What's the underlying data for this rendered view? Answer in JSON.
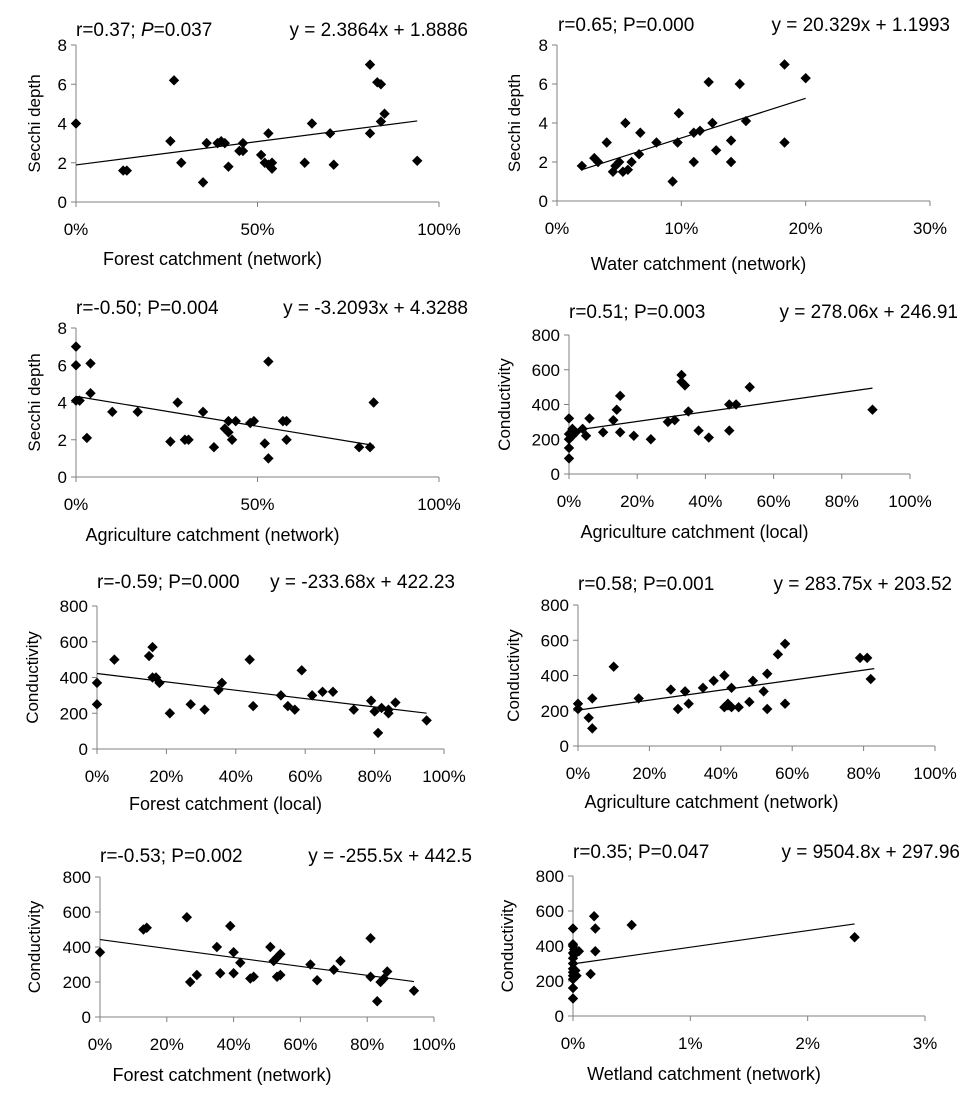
{
  "chart_data": [
    {
      "type": "scatter",
      "stat_r": "r=0.37; ",
      "stat_p_label": "P",
      "stat_p_value": "=0.037",
      "equation": "y = 2.3864x + 1.8886",
      "xlabel": "Forest catchment (network)",
      "ylabel": "Secchi depth",
      "xlim": [
        0,
        1
      ],
      "ylim": [
        0,
        8
      ],
      "xticks": [
        "0%",
        "50%",
        "100%"
      ],
      "xtick_values": [
        0,
        0.5,
        1
      ],
      "yticks": [
        "0",
        "2",
        "4",
        "6",
        "8"
      ],
      "ytick_values": [
        0,
        2,
        4,
        6,
        8
      ],
      "trend": {
        "slope": 2.3864,
        "intercept": 1.8886,
        "x_range": [
          0,
          0.94
        ]
      },
      "x": [
        0.0,
        0.13,
        0.14,
        0.26,
        0.27,
        0.29,
        0.35,
        0.36,
        0.39,
        0.4,
        0.41,
        0.42,
        0.45,
        0.46,
        0.46,
        0.51,
        0.52,
        0.53,
        0.53,
        0.54,
        0.54,
        0.63,
        0.65,
        0.7,
        0.71,
        0.81,
        0.81,
        0.83,
        0.84,
        0.84,
        0.85,
        0.94
      ],
      "y": [
        4.0,
        1.6,
        1.6,
        3.1,
        6.2,
        2.0,
        1.0,
        3.0,
        3.0,
        3.1,
        3.0,
        1.8,
        2.6,
        3.0,
        2.6,
        2.4,
        2.0,
        1.9,
        3.5,
        1.7,
        2.0,
        2.0,
        4.0,
        3.5,
        1.9,
        7.0,
        3.5,
        6.1,
        4.1,
        6.0,
        4.5,
        2.1
      ]
    },
    {
      "type": "scatter",
      "stat_r": "r=0.65; P=0.000",
      "equation": "y = 20.329x + 1.1993",
      "xlabel": "Water catchment (network)",
      "ylabel": "Secchi depth",
      "xlim": [
        0,
        0.3
      ],
      "ylim": [
        0,
        8
      ],
      "xticks": [
        "0%",
        "10%",
        "20%",
        "30%"
      ],
      "xtick_values": [
        0,
        0.1,
        0.2,
        0.3
      ],
      "yticks": [
        "0",
        "2",
        "4",
        "6",
        "8"
      ],
      "ytick_values": [
        0,
        2,
        4,
        6,
        8
      ],
      "trend": {
        "slope": 20.329,
        "intercept": 1.1993,
        "x_range": [
          0.02,
          0.2
        ]
      },
      "x": [
        0.02,
        0.03,
        0.033,
        0.04,
        0.045,
        0.047,
        0.05,
        0.053,
        0.055,
        0.057,
        0.06,
        0.066,
        0.067,
        0.08,
        0.093,
        0.097,
        0.098,
        0.11,
        0.11,
        0.115,
        0.122,
        0.125,
        0.128,
        0.14,
        0.14,
        0.147,
        0.152,
        0.183,
        0.183,
        0.2
      ],
      "y": [
        1.8,
        2.2,
        2.0,
        3.0,
        1.5,
        1.8,
        2.0,
        1.5,
        4.0,
        1.6,
        2.0,
        2.4,
        3.5,
        3.0,
        1.0,
        3.0,
        4.5,
        2.0,
        3.5,
        3.6,
        6.1,
        4.0,
        2.6,
        2.0,
        3.1,
        6.0,
        4.1,
        7.0,
        3.0,
        6.3
      ]
    },
    {
      "type": "scatter",
      "stat_r": "r=-0.50; P=0.004",
      "equation": "y = -3.2093x + 4.3288",
      "xlabel": "Agriculture catchment (network)",
      "ylabel": "Secchi depth",
      "xlim": [
        0,
        1
      ],
      "ylim": [
        0,
        8
      ],
      "xticks": [
        "0%",
        "50%",
        "100%"
      ],
      "xtick_values": [
        0,
        0.5,
        1
      ],
      "yticks": [
        "0",
        "2",
        "4",
        "6",
        "8"
      ],
      "ytick_values": [
        0,
        2,
        4,
        6,
        8
      ],
      "trend": {
        "slope": -3.2093,
        "intercept": 4.3288,
        "x_range": [
          0,
          0.82
        ]
      },
      "x": [
        0.0,
        0.0,
        0.0,
        0.01,
        0.03,
        0.04,
        0.04,
        0.1,
        0.17,
        0.26,
        0.28,
        0.3,
        0.31,
        0.35,
        0.38,
        0.41,
        0.42,
        0.42,
        0.43,
        0.44,
        0.48,
        0.49,
        0.52,
        0.53,
        0.53,
        0.57,
        0.58,
        0.58,
        0.78,
        0.81,
        0.82
      ],
      "y": [
        4.1,
        6.0,
        7.0,
        4.1,
        2.1,
        4.5,
        6.1,
        3.5,
        3.5,
        1.9,
        4.0,
        2.0,
        2.0,
        3.5,
        1.6,
        2.6,
        3.0,
        2.4,
        2.0,
        3.0,
        2.9,
        3.0,
        1.8,
        1.0,
        6.2,
        3.0,
        3.0,
        2.0,
        1.6,
        1.6,
        4.0
      ]
    },
    {
      "type": "scatter",
      "stat_r": "r=0.51; P=0.003",
      "equation": "y = 278.06x + 246.91",
      "xlabel": "Agriculture catchment (local)",
      "ylabel": "Conductivity",
      "xlim": [
        0,
        1
      ],
      "ylim": [
        0,
        800
      ],
      "xticks": [
        "0%",
        "20%",
        "40%",
        "60%",
        "80%",
        "100%"
      ],
      "xtick_values": [
        0,
        0.2,
        0.4,
        0.6,
        0.8,
        1
      ],
      "yticks": [
        "0",
        "200",
        "400",
        "600",
        "800"
      ],
      "ytick_values": [
        0,
        200,
        400,
        600,
        800
      ],
      "trend": {
        "slope": 278.06,
        "intercept": 246.91,
        "x_range": [
          0,
          0.89
        ]
      },
      "x": [
        0.0,
        0.0,
        0.0,
        0.0,
        0.0,
        0.01,
        0.01,
        0.01,
        0.02,
        0.04,
        0.05,
        0.06,
        0.1,
        0.13,
        0.14,
        0.15,
        0.15,
        0.19,
        0.24,
        0.29,
        0.31,
        0.33,
        0.33,
        0.34,
        0.35,
        0.38,
        0.41,
        0.47,
        0.47,
        0.49,
        0.53,
        0.89
      ],
      "y": [
        90,
        150,
        200,
        230,
        320,
        220,
        260,
        250,
        240,
        260,
        220,
        320,
        240,
        310,
        370,
        240,
        450,
        220,
        200,
        300,
        310,
        570,
        530,
        510,
        360,
        250,
        210,
        400,
        250,
        400,
        500,
        370
      ]
    },
    {
      "type": "scatter",
      "stat_r": "r=-0.59; P=0.000",
      "equation": "y = -233.68x + 422.23",
      "xlabel": "Forest catchment (local)",
      "ylabel": "Conductivity",
      "xlim": [
        0,
        1
      ],
      "ylim": [
        0,
        800
      ],
      "xticks": [
        "0%",
        "20%",
        "40%",
        "60%",
        "80%",
        "100%"
      ],
      "xtick_values": [
        0,
        0.2,
        0.4,
        0.6,
        0.8,
        1
      ],
      "yticks": [
        "0",
        "200",
        "400",
        "600",
        "800"
      ],
      "ytick_values": [
        0,
        200,
        400,
        600,
        800
      ],
      "trend": {
        "slope": -233.68,
        "intercept": 422.23,
        "x_range": [
          0,
          0.95
        ]
      },
      "x": [
        0.0,
        0.0,
        0.05,
        0.15,
        0.16,
        0.17,
        0.16,
        0.18,
        0.21,
        0.27,
        0.31,
        0.35,
        0.36,
        0.44,
        0.45,
        0.53,
        0.55,
        0.57,
        0.59,
        0.62,
        0.65,
        0.68,
        0.74,
        0.79,
        0.8,
        0.82,
        0.81,
        0.84,
        0.84,
        0.86,
        0.95
      ],
      "y": [
        250,
        370,
        500,
        520,
        570,
        400,
        400,
        370,
        200,
        250,
        220,
        330,
        370,
        500,
        240,
        300,
        240,
        220,
        440,
        300,
        320,
        320,
        220,
        270,
        210,
        230,
        90,
        200,
        220,
        260,
        160
      ]
    },
    {
      "type": "scatter",
      "stat_r": "r=0.58; P=0.001",
      "equation": "y = 283.75x + 203.52",
      "xlabel": "Agriculture catchment (network)",
      "ylabel": "Conductivity",
      "xlim": [
        0,
        1
      ],
      "ylim": [
        0,
        800
      ],
      "xticks": [
        "0%",
        "20%",
        "40%",
        "60%",
        "80%",
        "100%"
      ],
      "xtick_values": [
        0,
        0.2,
        0.4,
        0.6,
        0.8,
        1
      ],
      "yticks": [
        "0",
        "200",
        "400",
        "600",
        "800"
      ],
      "ytick_values": [
        0,
        200,
        400,
        600,
        800
      ],
      "trend": {
        "slope": 283.75,
        "intercept": 203.52,
        "x_range": [
          0,
          0.83
        ]
      },
      "x": [
        0.0,
        0.0,
        0.03,
        0.04,
        0.04,
        0.1,
        0.17,
        0.26,
        0.28,
        0.3,
        0.31,
        0.35,
        0.38,
        0.41,
        0.41,
        0.42,
        0.42,
        0.43,
        0.43,
        0.45,
        0.48,
        0.49,
        0.52,
        0.53,
        0.53,
        0.56,
        0.58,
        0.58,
        0.79,
        0.81,
        0.82
      ],
      "y": [
        210,
        240,
        160,
        100,
        270,
        450,
        270,
        320,
        210,
        310,
        240,
        330,
        370,
        220,
        400,
        240,
        230,
        330,
        220,
        220,
        250,
        370,
        310,
        210,
        410,
        520,
        580,
        240,
        500,
        500,
        380
      ]
    },
    {
      "type": "scatter",
      "stat_r": "r=-0.53; P=0.002",
      "equation": "y = -255.5x + 442.5",
      "xlabel": "Forest catchment (network)",
      "ylabel": "Conductivity",
      "xlim": [
        0,
        1
      ],
      "ylim": [
        0,
        800
      ],
      "xticks": [
        "0%",
        "20%",
        "40%",
        "60%",
        "80%",
        "100%"
      ],
      "xtick_values": [
        0,
        0.2,
        0.4,
        0.6,
        0.8,
        1
      ],
      "yticks": [
        "0",
        "200",
        "400",
        "600",
        "800"
      ],
      "ytick_values": [
        0,
        200,
        400,
        600,
        800
      ],
      "trend": {
        "slope": -255.5,
        "intercept": 442.5,
        "x_range": [
          0,
          0.94
        ]
      },
      "x": [
        0.0,
        0.13,
        0.14,
        0.26,
        0.27,
        0.29,
        0.35,
        0.36,
        0.39,
        0.4,
        0.4,
        0.42,
        0.45,
        0.46,
        0.51,
        0.52,
        0.53,
        0.53,
        0.54,
        0.54,
        0.63,
        0.65,
        0.7,
        0.72,
        0.81,
        0.81,
        0.83,
        0.84,
        0.85,
        0.86,
        0.94
      ],
      "y": [
        370,
        500,
        510,
        570,
        200,
        240,
        400,
        250,
        520,
        250,
        370,
        310,
        220,
        230,
        400,
        320,
        230,
        340,
        360,
        240,
        300,
        210,
        270,
        320,
        450,
        230,
        90,
        200,
        220,
        260,
        150
      ]
    },
    {
      "type": "scatter",
      "stat_r": "r=0.35; P=0.047",
      "equation": "y = 9504.8x + 297.96",
      "xlabel": "Wetland catchment (network)",
      "ylabel": "Conductivity",
      "xlim": [
        0,
        0.03
      ],
      "ylim": [
        0,
        800
      ],
      "xticks": [
        "0%",
        "1%",
        "2%",
        "3%"
      ],
      "xtick_values": [
        0,
        0.01,
        0.02,
        0.03
      ],
      "yticks": [
        "0",
        "200",
        "400",
        "600",
        "800"
      ],
      "ytick_values": [
        0,
        200,
        400,
        600,
        800
      ],
      "trend": {
        "slope": 9504.8,
        "intercept": 297.96,
        "x_range": [
          0,
          0.024
        ]
      },
      "x": [
        0.0,
        0.0,
        0.0,
        0.0,
        0.0,
        0.0,
        0.0,
        0.0,
        0.0,
        0.0,
        0.0,
        0.0,
        0.0001,
        0.0001,
        0.0002,
        0.0003,
        0.0005,
        0.0015,
        0.0018,
        0.0019,
        0.0019,
        0.005,
        0.024
      ],
      "y": [
        100,
        160,
        210,
        230,
        250,
        270,
        300,
        330,
        360,
        400,
        410,
        500,
        350,
        380,
        260,
        230,
        370,
        240,
        570,
        500,
        370,
        520,
        450
      ]
    }
  ]
}
